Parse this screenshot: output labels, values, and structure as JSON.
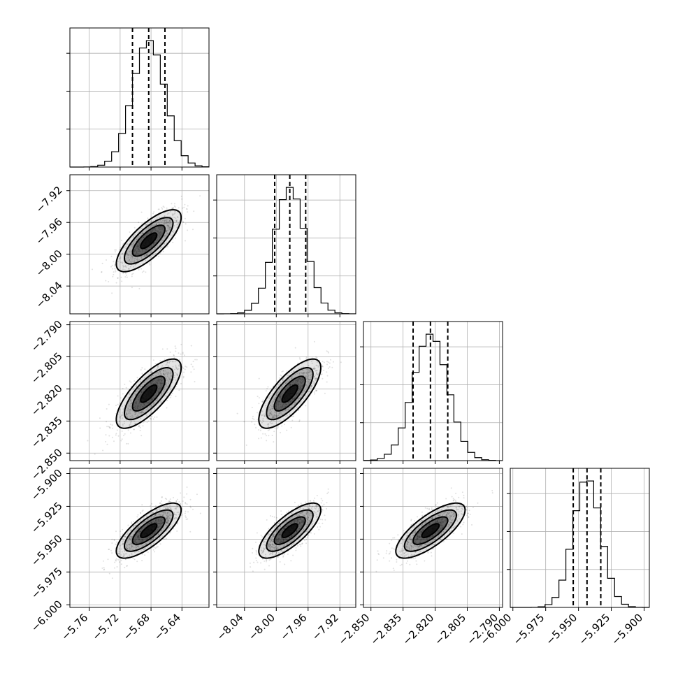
{
  "chart_data": {
    "type": "corner",
    "parameters": [
      {
        "median": -5.683,
        "sigma": 0.021,
        "q16": -5.704,
        "q50": -5.683,
        "q84": -5.662,
        "range": [
          -5.785,
          -5.605
        ],
        "ticks": [
          -5.76,
          -5.72,
          -5.68,
          -5.64
        ],
        "tick_labels": [
          "−5.76",
          "−5.72",
          "−5.68",
          "−5.64"
        ]
      },
      {
        "median": -7.983,
        "sigma": 0.0195,
        "q16": -8.002,
        "q50": -7.983,
        "q84": -7.963,
        "range": [
          -8.075,
          -7.9
        ],
        "ticks": [
          -8.04,
          -8.0,
          -7.96,
          -7.92
        ],
        "tick_labels": [
          "−8.04",
          "−8.00",
          "−7.96",
          "−7.92"
        ]
      },
      {
        "median": -2.8222,
        "sigma": 0.0081,
        "q16": -2.8303,
        "q50": -2.8222,
        "q84": -2.8141,
        "range": [
          -2.8535,
          -2.7885
        ],
        "ticks": [
          -2.85,
          -2.835,
          -2.82,
          -2.805,
          -2.79
        ],
        "tick_labels": [
          "−2.850",
          "−2.835",
          "−2.820",
          "−2.805",
          "−2.790"
        ]
      },
      {
        "median": -5.9435,
        "sigma": 0.0105,
        "q16": -5.954,
        "q50": -5.9435,
        "q84": -5.933,
        "range": [
          -6.002,
          -5.896
        ],
        "ticks": [
          -6.0,
          -5.975,
          -5.95,
          -5.925,
          -5.9
        ],
        "tick_labels": [
          "−6.000",
          "−5.975",
          "−5.950",
          "−5.925",
          "−5.900"
        ]
      }
    ],
    "correlation": 0.75,
    "histogram_bins": 20,
    "quantiles": [
      0.16,
      0.5,
      0.84
    ],
    "grid": true
  }
}
